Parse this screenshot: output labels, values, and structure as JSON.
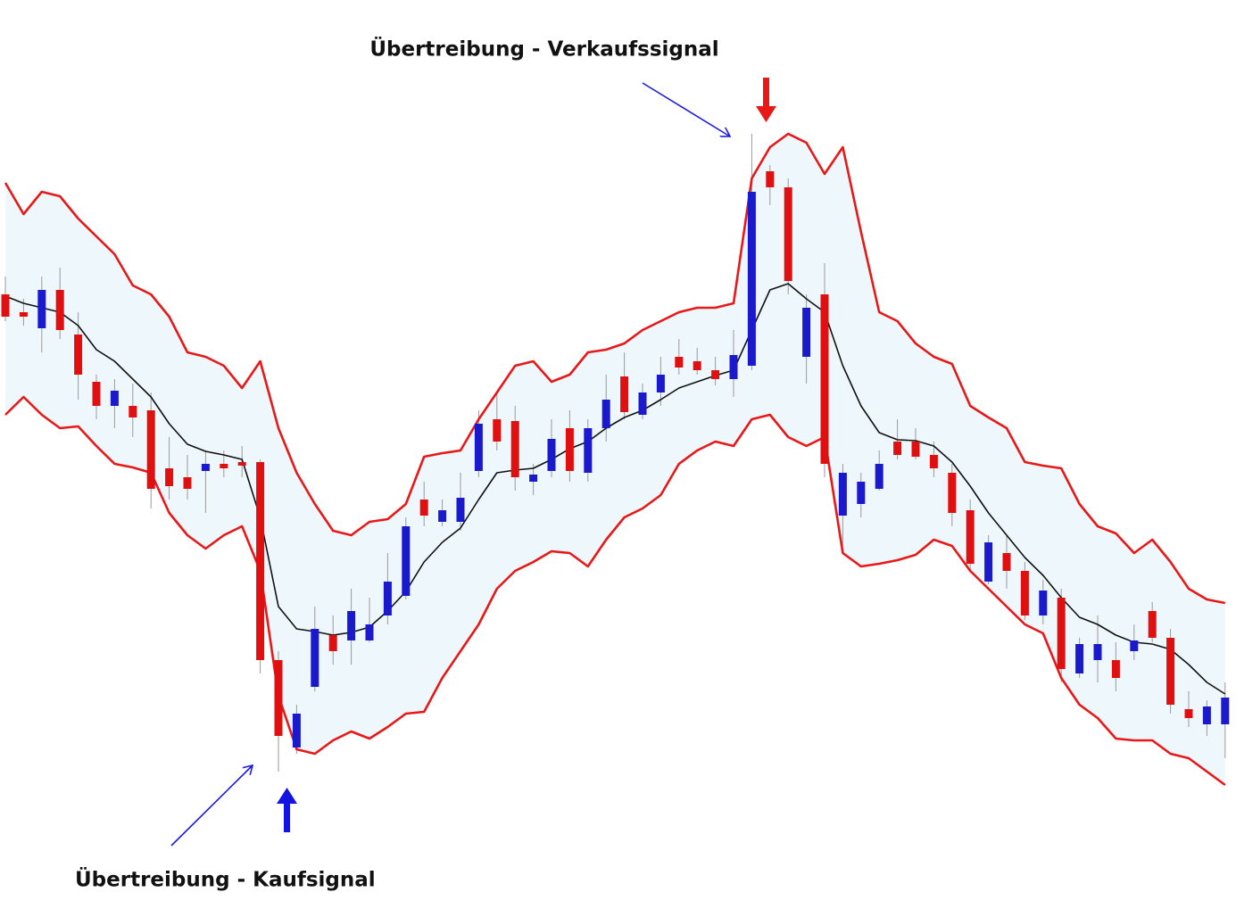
{
  "chart_data": {
    "type": "candlestick",
    "annotations": [
      "Übertreibung - Verkaufssignal",
      "Übertreibung - Kaufsignal"
    ],
    "categories": [
      null,
      null,
      null,
      null,
      null,
      null,
      null,
      null,
      null,
      null,
      null,
      null,
      null,
      null,
      null,
      null,
      null,
      null,
      null,
      null,
      null,
      null,
      null,
      null,
      null,
      null,
      null,
      null,
      null,
      null,
      null,
      null,
      null,
      null,
      null,
      null,
      null,
      null,
      null,
      null,
      null,
      null,
      null,
      null,
      null,
      null,
      null,
      null,
      null,
      null,
      null,
      null,
      null,
      null,
      null,
      null,
      null,
      null,
      null,
      null,
      null,
      null,
      null,
      null,
      null,
      null,
      null,
      null
    ],
    "ylim": [
      0,
      102.8
    ],
    "up_color": "#1a1acc",
    "down_color": "#e01010",
    "wick_color": "#9a9a9a",
    "band_fill": "#eef7fb",
    "candles": {
      "open": [
        69.8,
        67.8,
        66.0,
        70.3,
        65.3,
        60.0,
        57.3,
        57.3,
        56.8,
        50.3,
        49.3,
        50.0,
        50.8,
        51.0,
        51.0,
        28.8,
        19.0,
        25.8,
        31.6,
        31.0,
        31.0,
        33.8,
        36.0,
        46.8,
        44.3,
        44.3,
        50.0,
        55.8,
        55.6,
        48.8,
        50.0,
        54.8,
        49.8,
        54.8,
        60.6,
        56.3,
        58.8,
        62.8,
        62.3,
        61.3,
        60.3,
        61.8,
        83.6,
        81.8,
        62.8,
        69.8,
        45.0,
        46.3,
        48.0,
        53.3,
        53.3,
        51.8,
        49.8,
        45.6,
        37.6,
        40.8,
        38.8,
        33.8,
        35.8,
        27.3,
        28.8,
        28.8,
        29.8,
        34.3,
        31.3,
        23.3,
        21.6,
        21.6
      ],
      "high": [
        71.8,
        69.3,
        71.8,
        72.8,
        67.8,
        60.8,
        60.3,
        59.8,
        58.8,
        53.8,
        51.8,
        52.3,
        52.3,
        52.8,
        51.3,
        29.8,
        23.8,
        34.8,
        33.8,
        36.8,
        35.8,
        40.8,
        44.8,
        48.8,
        46.8,
        49.8,
        56.8,
        58.8,
        57.3,
        50.8,
        55.8,
        56.8,
        55.8,
        60.8,
        63.3,
        59.8,
        62.8,
        64.8,
        63.8,
        62.8,
        65.8,
        87.8,
        84.3,
        82.8,
        69.8,
        73.3,
        50.8,
        49.8,
        52.3,
        55.8,
        54.8,
        53.3,
        50.8,
        46.8,
        42.8,
        42.8,
        39.8,
        37.8,
        36.8,
        31.3,
        33.8,
        30.8,
        32.8,
        35.3,
        32.3,
        25.3,
        24.3,
        26.3
      ],
      "low": [
        66.8,
        66.3,
        63.3,
        64.8,
        58.0,
        55.8,
        54.8,
        53.8,
        45.8,
        46.8,
        46.8,
        45.3,
        49.3,
        49.3,
        27.3,
        16.3,
        18.3,
        25.3,
        28.3,
        28.3,
        30.8,
        32.8,
        35.6,
        43.8,
        43.8,
        43.3,
        49.3,
        52.3,
        47.8,
        47.3,
        49.3,
        48.8,
        48.8,
        53.3,
        55.8,
        55.8,
        57.3,
        60.8,
        60.8,
        59.6,
        58.3,
        61.3,
        79.8,
        69.8,
        59.8,
        49.3,
        41.6,
        44.8,
        47.8,
        51.3,
        51.3,
        49.3,
        43.8,
        38.8,
        37.3,
        36.8,
        33.3,
        32.8,
        26.3,
        26.8,
        26.3,
        25.3,
        28.8,
        30.8,
        22.8,
        21.3,
        20.3,
        17.8
      ],
      "close": [
        67.3,
        67.3,
        70.3,
        65.8,
        60.8,
        57.3,
        59.0,
        56.0,
        48.0,
        48.3,
        48.0,
        50.8,
        50.3,
        50.6,
        28.8,
        20.3,
        22.8,
        32.3,
        29.8,
        34.3,
        32.8,
        37.6,
        43.8,
        45.0,
        45.6,
        47.0,
        55.3,
        53.3,
        49.3,
        49.6,
        53.6,
        50.0,
        54.8,
        58.0,
        56.6,
        58.8,
        60.8,
        61.6,
        61.3,
        60.3,
        63.0,
        81.3,
        81.8,
        71.3,
        68.3,
        50.8,
        49.8,
        48.8,
        50.8,
        51.8,
        51.6,
        50.3,
        45.3,
        39.6,
        42.0,
        38.8,
        33.8,
        36.6,
        27.8,
        30.6,
        30.6,
        26.8,
        31.0,
        31.3,
        23.8,
        22.3,
        23.6,
        24.6
      ]
    },
    "lines": [
      {
        "color": "#e81818",
        "values": [
          82.3,
          78.8,
          81.3,
          80.8,
          78.3,
          76.3,
          74.3,
          70.8,
          69.8,
          67.3,
          63.3,
          62.8,
          61.8,
          59.3,
          62.3,
          54.8,
          49.8,
          46.3,
          43.3,
          42.8,
          44.3,
          44.6,
          46.3,
          51.6,
          52.0,
          52.3,
          55.8,
          58.8,
          61.8,
          62.3,
          60.0,
          60.8,
          63.3,
          63.6,
          64.3,
          65.8,
          66.8,
          67.8,
          68.3,
          68.3,
          68.8,
          82.8,
          86.3,
          87.8,
          86.8,
          83.3,
          86.3,
          76.8,
          67.8,
          66.8,
          64.3,
          62.8,
          62.0,
          57.3,
          56.0,
          54.8,
          51.0,
          50.6,
          50.3,
          46.3,
          43.8,
          43.0,
          40.8,
          42.3,
          39.8,
          36.8,
          35.6,
          35.2
        ]
      },
      {
        "color": "#111111",
        "values": [
          69.6,
          68.8,
          68.3,
          67.8,
          66.3,
          63.6,
          62.3,
          60.3,
          58.3,
          55.3,
          53.0,
          52.2,
          51.8,
          51.3,
          44.8,
          34.8,
          32.3,
          32.0,
          31.6,
          31.9,
          32.5,
          34.3,
          36.5,
          39.8,
          42.0,
          43.6,
          46.8,
          49.8,
          50.1,
          50.3,
          51.3,
          52.5,
          53.3,
          54.8,
          56.0,
          56.8,
          58.0,
          59.3,
          60.0,
          60.7,
          61.3,
          65.8,
          70.3,
          71.0,
          69.3,
          67.8,
          61.8,
          57.3,
          54.3,
          53.5,
          53.4,
          52.8,
          51.0,
          48.3,
          45.3,
          42.8,
          40.3,
          38.3,
          35.8,
          33.6,
          32.8,
          31.6,
          30.8,
          30.6,
          30.0,
          28.3,
          26.3,
          25.0
        ]
      },
      {
        "color": "#e81818",
        "values": [
          56.3,
          58.3,
          56.3,
          54.8,
          55.0,
          52.8,
          50.8,
          50.4,
          49.8,
          45.3,
          42.8,
          41.3,
          42.8,
          43.8,
          38.8,
          24.8,
          18.8,
          18.3,
          19.8,
          20.8,
          20.0,
          21.3,
          22.8,
          23.0,
          26.8,
          29.8,
          32.8,
          36.8,
          38.8,
          39.8,
          41.0,
          40.8,
          39.3,
          42.3,
          44.8,
          45.8,
          47.3,
          50.8,
          52.3,
          53.3,
          52.8,
          55.8,
          56.3,
          53.8,
          52.8,
          53.8,
          40.8,
          39.3,
          39.6,
          40.0,
          40.6,
          42.3,
          41.6,
          38.8,
          36.8,
          34.8,
          32.8,
          31.8,
          26.8,
          23.8,
          22.3,
          20.0,
          19.8,
          19.8,
          18.3,
          17.8,
          16.3,
          14.8
        ]
      }
    ]
  }
}
